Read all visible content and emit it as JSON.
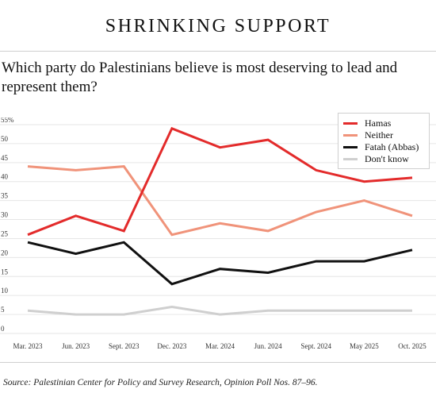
{
  "title": "SHRINKING SUPPORT",
  "subtitle": "Which party do Palestinians believe is most deserving to lead and represent them?",
  "source": "Source: Palestinian Center for Policy and Survey Research, Opinion Poll Nos. 87–96.",
  "chart_data": {
    "type": "line",
    "categories": [
      "Mar. 2023",
      "Jun. 2023",
      "Sept. 2023",
      "Dec. 2023",
      "Mar. 2024",
      "Jun. 2024",
      "Sept. 2024",
      "May 2025",
      "Oct. 2025"
    ],
    "y_ticks": [
      "55%",
      "50",
      "45",
      "40",
      "35",
      "30",
      "25",
      "20",
      "15",
      "10",
      "5",
      "0"
    ],
    "ylim": [
      0,
      55
    ],
    "grid": true,
    "legend_position": "top-right",
    "series": [
      {
        "name": "Hamas",
        "color": "#e32b2b",
        "values": [
          26,
          31,
          27,
          54,
          49,
          51,
          43,
          40,
          41
        ]
      },
      {
        "name": "Neither",
        "color": "#f0937a",
        "values": [
          44,
          43,
          44,
          26,
          29,
          27,
          32,
          35,
          31
        ]
      },
      {
        "name": "Fatah (Abbas)",
        "color": "#111111",
        "values": [
          24,
          21,
          24,
          13,
          17,
          16,
          19,
          19,
          22
        ]
      },
      {
        "name": "Don't know",
        "color": "#cfcfcf",
        "values": [
          6,
          5,
          5,
          7,
          5,
          6,
          6,
          6,
          6
        ]
      }
    ]
  }
}
